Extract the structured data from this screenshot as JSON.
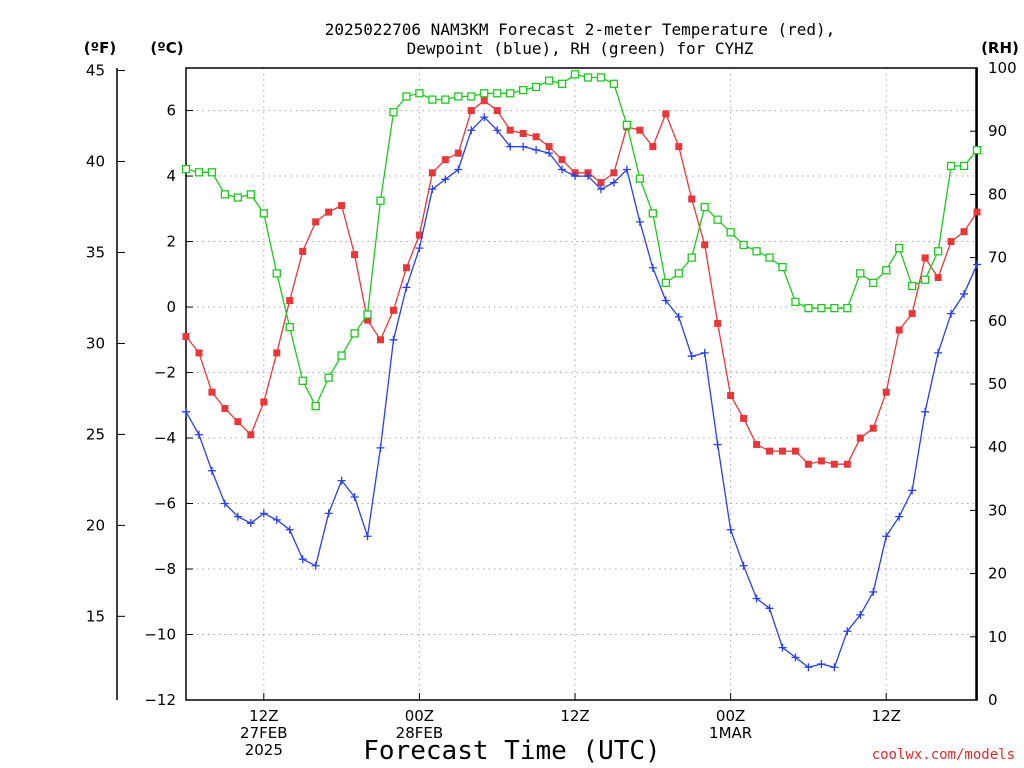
{
  "title": [
    "2025022706 NAM3KM Forecast 2-meter Temperature (red),",
    "Dewpoint (blue), RH (green) for CYHZ"
  ],
  "units": {
    "fahrenheit": "(ºF)",
    "celsius": "(ºC)",
    "rh": "(RH)"
  },
  "xlabel": "Forecast Time (UTC)",
  "credit": "coolwx.com/models",
  "colors": {
    "temperature": "#e8373b",
    "dewpoint": "#2840e6",
    "rh": "#1ec81e",
    "grid": "#a8a8a8",
    "credit": "#dd2a2a"
  },
  "chart_data": {
    "type": "line",
    "x_start_hour": 0,
    "x_end_hour": 61,
    "x_ticks": [
      {
        "hour": 6,
        "labels": [
          "12Z",
          "27FEB",
          "2025"
        ]
      },
      {
        "hour": 18,
        "labels": [
          "00Z",
          "28FEB"
        ]
      },
      {
        "hour": 30,
        "labels": [
          "12Z"
        ]
      },
      {
        "hour": 42,
        "labels": [
          "00Z",
          "1MAR"
        ]
      },
      {
        "hour": 54,
        "labels": [
          "12Z"
        ]
      }
    ],
    "y_celsius": {
      "min": -12,
      "max": 7.3,
      "ticks": [
        -12,
        -10,
        -8,
        -6,
        -4,
        -2,
        0,
        2,
        4,
        6
      ],
      "tick_labels": [
        "−12",
        "−10",
        "−8",
        "−6",
        "−4",
        "−2",
        "0",
        "2",
        "4",
        "6"
      ]
    },
    "y_fahrenheit": {
      "ticks": [
        15,
        20,
        25,
        30,
        35,
        40,
        45
      ]
    },
    "y_rh": {
      "min": 0,
      "max": 100,
      "ticks": [
        0,
        10,
        20,
        30,
        40,
        50,
        60,
        70,
        80,
        90,
        100
      ]
    },
    "grid": true,
    "series": [
      {
        "key": "temperature",
        "axis": "celsius",
        "marker": "filled-square",
        "hours": [
          0,
          1,
          2,
          3,
          4,
          5,
          6,
          7,
          8,
          9,
          10,
          11,
          12,
          13,
          14,
          15,
          16,
          17,
          18,
          19,
          20,
          21,
          22,
          23,
          24,
          25,
          26,
          27,
          28,
          29,
          30,
          31,
          32,
          33,
          34,
          35,
          36,
          37,
          38,
          39,
          40,
          41,
          42,
          43,
          44,
          45,
          46,
          47,
          48,
          49,
          50,
          51,
          52,
          53,
          54,
          55,
          56,
          57,
          58,
          59,
          60,
          61
        ],
        "values": [
          -0.9,
          -1.4,
          -2.6,
          -3.1,
          -3.5,
          -3.9,
          -2.9,
          -1.4,
          0.2,
          1.7,
          2.6,
          2.9,
          3.1,
          1.6,
          -0.4,
          -1.0,
          -0.1,
          1.2,
          2.2,
          4.1,
          4.5,
          4.7,
          6.0,
          6.3,
          6.0,
          5.4,
          5.3,
          5.2,
          4.9,
          4.5,
          4.1,
          4.1,
          3.8,
          4.1,
          5.5,
          5.4,
          4.9,
          5.9,
          4.9,
          3.3,
          1.9,
          -0.5,
          -2.7,
          -3.4,
          -4.2,
          -4.4,
          -4.4,
          -4.4,
          -4.8,
          -4.7,
          -4.8,
          -4.8,
          -4.0,
          -3.7,
          -2.6,
          -0.7,
          -0.2,
          1.5,
          0.9,
          2.0,
          2.3,
          2.9
        ]
      },
      {
        "key": "dewpoint",
        "axis": "celsius",
        "marker": "plus",
        "hours": [
          0,
          1,
          2,
          3,
          4,
          5,
          6,
          7,
          8,
          9,
          10,
          11,
          12,
          13,
          14,
          15,
          16,
          17,
          18,
          19,
          20,
          21,
          22,
          23,
          24,
          25,
          26,
          27,
          28,
          29,
          30,
          31,
          32,
          33,
          34,
          35,
          36,
          37,
          38,
          39,
          40,
          41,
          42,
          43,
          44,
          45,
          46,
          47,
          48,
          49,
          50,
          51,
          52,
          53,
          54,
          55,
          56,
          57,
          58,
          59,
          60,
          61
        ],
        "values": [
          -3.2,
          -3.9,
          -5.0,
          -6.0,
          -6.4,
          -6.6,
          -6.3,
          -6.5,
          -6.8,
          -7.7,
          -7.9,
          -6.3,
          -5.3,
          -5.8,
          -7.0,
          -4.3,
          -1.0,
          0.6,
          1.8,
          3.6,
          3.9,
          4.2,
          5.4,
          5.8,
          5.4,
          4.9,
          4.9,
          4.8,
          4.7,
          4.2,
          4.0,
          4.0,
          3.6,
          3.8,
          4.2,
          2.6,
          1.2,
          0.2,
          -0.3,
          -1.5,
          -1.4,
          -4.2,
          -6.8,
          -7.9,
          -8.9,
          -9.2,
          -10.4,
          -10.7,
          -11.0,
          -10.9,
          -11.0,
          -9.9,
          -9.4,
          -8.7,
          -7.0,
          -6.4,
          -5.6,
          -3.2,
          -1.4,
          -0.2,
          0.4,
          1.3
        ]
      },
      {
        "key": "rh",
        "axis": "rh",
        "marker": "open-square",
        "hours": [
          0,
          1,
          2,
          3,
          4,
          5,
          6,
          7,
          8,
          9,
          10,
          11,
          12,
          13,
          14,
          15,
          16,
          17,
          18,
          19,
          20,
          21,
          22,
          23,
          24,
          25,
          26,
          27,
          28,
          29,
          30,
          31,
          32,
          33,
          34,
          35,
          36,
          37,
          38,
          39,
          40,
          41,
          42,
          43,
          44,
          45,
          46,
          47,
          48,
          49,
          50,
          51,
          52,
          53,
          54,
          55,
          56,
          57,
          58,
          59,
          60,
          61
        ],
        "values": [
          84,
          83.5,
          83.5,
          80,
          79.5,
          80,
          77,
          67.5,
          59,
          50.5,
          46.5,
          51,
          54.5,
          58,
          61,
          79,
          93,
          95.5,
          96,
          95,
          95,
          95.5,
          95.5,
          96,
          96,
          96,
          96.5,
          97,
          98,
          97.5,
          99,
          98.5,
          98.5,
          97.5,
          91,
          82.5,
          77,
          66,
          67.5,
          70,
          78,
          76,
          74,
          72,
          71,
          70,
          68.5,
          63,
          62,
          62,
          62,
          62,
          67.5,
          66,
          68,
          71.5,
          65.5,
          66.5,
          71,
          84.5,
          84.5,
          87
        ]
      }
    ]
  }
}
